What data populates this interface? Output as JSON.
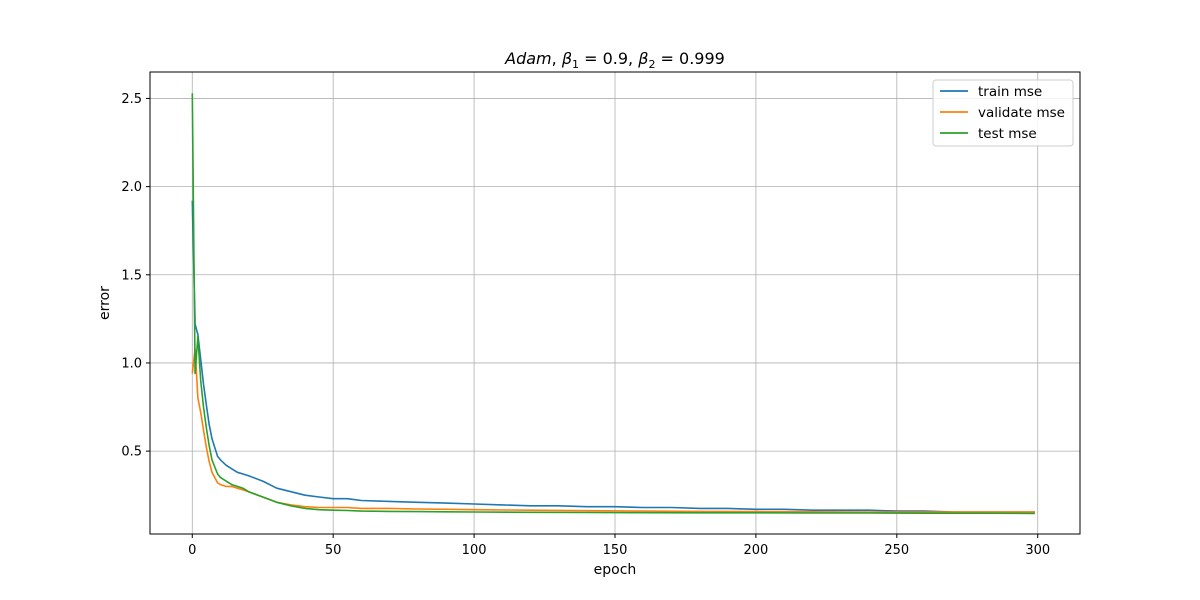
{
  "chart_data": {
    "type": "line",
    "title": "Adam, β₁ = 0.9, β₂ = 0.999",
    "title_parts": {
      "method": "Adam",
      "beta": "β",
      "sub1": "1",
      "val1": " = 0.9, ",
      "sub2": "2",
      "val2": " = 0.999"
    },
    "xlabel": "epoch",
    "ylabel": "error",
    "xlim": [
      -15,
      315
    ],
    "ylim": [
      0.03,
      2.65
    ],
    "xticks": [
      0,
      50,
      100,
      150,
      200,
      250,
      300
    ],
    "yticks": [
      0.5,
      1.0,
      1.5,
      2.0,
      2.5
    ],
    "ytick_labels": [
      "0.5",
      "1.0",
      "1.5",
      "2.0",
      "2.5"
    ],
    "grid": true,
    "legend_position": "top-right",
    "series": [
      {
        "name": "train mse",
        "color": "#1f77b4",
        "x": [
          0,
          1,
          2,
          3,
          4,
          5,
          6,
          7,
          8,
          9,
          10,
          12,
          14,
          16,
          18,
          20,
          25,
          30,
          35,
          40,
          45,
          50,
          55,
          60,
          70,
          80,
          90,
          100,
          110,
          120,
          130,
          140,
          150,
          160,
          170,
          180,
          190,
          200,
          210,
          220,
          230,
          240,
          250,
          260,
          270,
          280,
          290,
          299
        ],
        "y": [
          1.92,
          1.22,
          1.16,
          1.02,
          0.88,
          0.76,
          0.65,
          0.57,
          0.52,
          0.47,
          0.45,
          0.42,
          0.4,
          0.38,
          0.37,
          0.36,
          0.33,
          0.29,
          0.27,
          0.25,
          0.24,
          0.23,
          0.23,
          0.22,
          0.215,
          0.21,
          0.205,
          0.2,
          0.195,
          0.19,
          0.19,
          0.185,
          0.185,
          0.18,
          0.18,
          0.175,
          0.175,
          0.17,
          0.17,
          0.165,
          0.165,
          0.165,
          0.16,
          0.16,
          0.155,
          0.155,
          0.155,
          0.155
        ]
      },
      {
        "name": "validate mse",
        "color": "#ff7f0e",
        "x": [
          0,
          1,
          2,
          3,
          4,
          5,
          6,
          7,
          8,
          9,
          10,
          12,
          14,
          16,
          18,
          20,
          25,
          30,
          35,
          40,
          45,
          50,
          55,
          60,
          70,
          80,
          90,
          100,
          120,
          140,
          160,
          180,
          200,
          220,
          240,
          260,
          280,
          299
        ],
        "y": [
          0.94,
          1.08,
          0.8,
          0.72,
          0.62,
          0.52,
          0.44,
          0.38,
          0.35,
          0.32,
          0.31,
          0.3,
          0.3,
          0.29,
          0.28,
          0.27,
          0.24,
          0.21,
          0.195,
          0.185,
          0.18,
          0.18,
          0.18,
          0.175,
          0.175,
          0.172,
          0.17,
          0.168,
          0.165,
          0.162,
          0.16,
          0.158,
          0.157,
          0.156,
          0.155,
          0.155,
          0.154,
          0.154
        ]
      },
      {
        "name": "test mse",
        "color": "#2ca02c",
        "x": [
          0,
          1,
          2,
          3,
          4,
          5,
          6,
          7,
          8,
          9,
          10,
          12,
          14,
          16,
          18,
          20,
          25,
          30,
          35,
          40,
          45,
          50,
          55,
          60,
          70,
          80,
          90,
          100,
          120,
          140,
          160,
          180,
          200,
          220,
          240,
          260,
          280,
          299
        ],
        "y": [
          2.53,
          0.94,
          1.15,
          0.9,
          0.75,
          0.63,
          0.53,
          0.45,
          0.41,
          0.37,
          0.35,
          0.33,
          0.31,
          0.3,
          0.29,
          0.27,
          0.24,
          0.21,
          0.19,
          0.175,
          0.168,
          0.165,
          0.163,
          0.16,
          0.158,
          0.157,
          0.156,
          0.155,
          0.153,
          0.152,
          0.151,
          0.15,
          0.15,
          0.149,
          0.149,
          0.148,
          0.148,
          0.147
        ]
      }
    ]
  }
}
